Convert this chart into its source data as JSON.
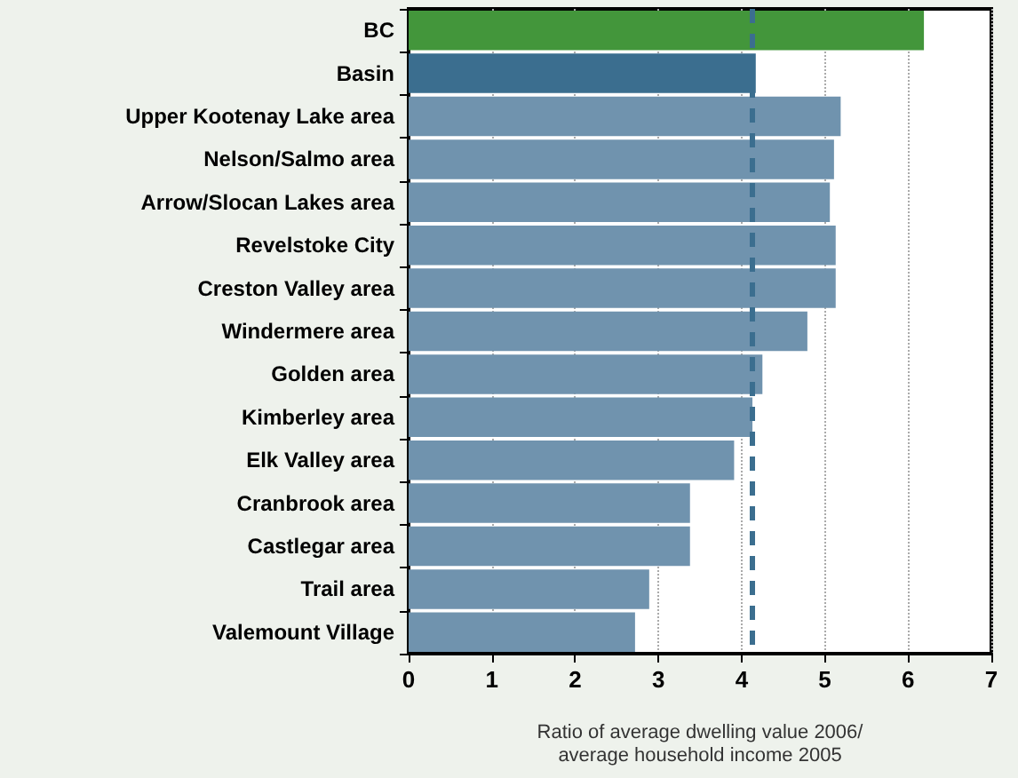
{
  "chart_data": {
    "type": "bar",
    "orientation": "horizontal",
    "xlabel": "Ratio of average dwelling value 2006/\naverage household income 2005",
    "categories": [
      "BC",
      "Basin",
      "Upper Kootenay Lake area",
      "Nelson/Salmo area",
      "Arrow/Slocan Lakes area",
      "Revelstoke City",
      "Creston Valley area",
      "Windermere area",
      "Golden area",
      "Kimberley area",
      "Elk Valley area",
      "Cranbrook area",
      "Castlegar area",
      "Trail area",
      "Valemount Village"
    ],
    "values": [
      6.19,
      4.17,
      5.19,
      5.11,
      5.06,
      5.13,
      5.13,
      4.79,
      4.25,
      4.13,
      3.91,
      3.38,
      3.38,
      2.89,
      2.72
    ],
    "colors": [
      "#43963b",
      "#3b6e8f",
      "#7093ae",
      "#7093ae",
      "#7093ae",
      "#7093ae",
      "#7093ae",
      "#7093ae",
      "#7093ae",
      "#7093ae",
      "#7093ae",
      "#7093ae",
      "#7093ae",
      "#7093ae",
      "#7093ae"
    ],
    "xlim": [
      0,
      7
    ],
    "xticks": [
      0,
      1,
      2,
      3,
      4,
      5,
      6,
      7
    ],
    "grid": "x",
    "ref_lines": [
      {
        "axis": "x",
        "value": 4.13,
        "color": "#3b6e8f",
        "line_style": "dashed"
      }
    ]
  }
}
